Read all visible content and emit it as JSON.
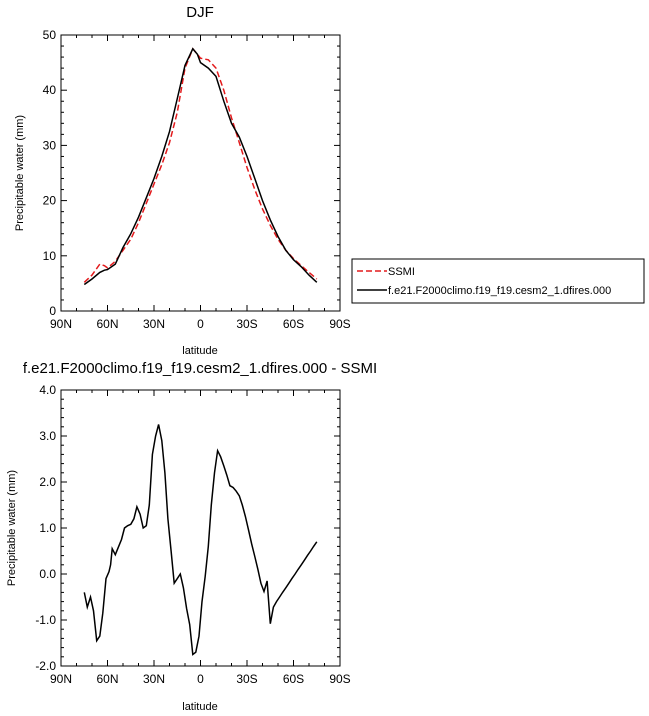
{
  "chart_data": [
    {
      "type": "line",
      "title": "DJF",
      "xlabel": "latitude",
      "ylabel": "Precipitable water (mm)",
      "xlim": [
        90,
        -90
      ],
      "ylim": [
        0,
        50
      ],
      "xticks": [
        90,
        60,
        30,
        0,
        -30,
        -60,
        -90
      ],
      "xtick_labels": [
        "90N",
        "60N",
        "30N",
        "0",
        "30S",
        "60S",
        "90S"
      ],
      "yticks": [
        0,
        10,
        20,
        30,
        40,
        50
      ],
      "ytick_labels": [
        "0",
        "10",
        "20",
        "30",
        "40",
        "50"
      ],
      "legend_position": "right",
      "series": [
        {
          "name": "SSMI",
          "color": "#e31a1c",
          "dash": "dashed",
          "x": [
            75,
            70,
            65,
            62,
            60,
            55,
            50,
            45,
            40,
            35,
            30,
            25,
            20,
            15,
            10,
            5,
            2,
            0,
            -5,
            -10,
            -15,
            -20,
            -25,
            -30,
            -35,
            -40,
            -45,
            -50,
            -55,
            -60,
            -65,
            -70,
            -75
          ],
          "y": [
            5.2,
            6.5,
            8.5,
            8.2,
            7.8,
            9.0,
            11.0,
            13.0,
            16.0,
            19.5,
            23.0,
            26.5,
            30.5,
            36.0,
            44.0,
            47.5,
            46.5,
            45.8,
            45.5,
            44.0,
            40.0,
            35.0,
            30.5,
            26.0,
            22.0,
            18.5,
            15.5,
            13.0,
            11.0,
            9.5,
            8.2,
            7.0,
            5.8
          ]
        },
        {
          "name": "f.e21.F2000climo.f19_f19.cesm2_1.dfires.000",
          "color": "#000000",
          "dash": "solid",
          "x": [
            75,
            70,
            65,
            62,
            60,
            55,
            50,
            45,
            40,
            35,
            30,
            25,
            20,
            15,
            10,
            5,
            2,
            0,
            -5,
            -10,
            -15,
            -20,
            -25,
            -30,
            -35,
            -40,
            -45,
            -50,
            -55,
            -60,
            -65,
            -70,
            -75
          ],
          "y": [
            4.8,
            5.8,
            7.0,
            7.4,
            7.5,
            8.5,
            11.5,
            14.0,
            17.0,
            20.5,
            24.0,
            28.0,
            32.5,
            38.5,
            44.5,
            47.5,
            46.5,
            45.0,
            44.0,
            42.5,
            38.0,
            34.0,
            31.5,
            28.0,
            24.0,
            20.0,
            16.5,
            13.5,
            11.0,
            9.3,
            8.0,
            6.5,
            5.2
          ]
        }
      ]
    },
    {
      "type": "line",
      "title": "f.e21.F2000climo.f19_f19.cesm2_1.dfires.000 - SSMI",
      "xlabel": "latitude",
      "ylabel": "Precipitable water (mm)",
      "xlim": [
        90,
        -90
      ],
      "ylim": [
        -2.0,
        4.0
      ],
      "xticks": [
        90,
        60,
        30,
        0,
        -30,
        -60,
        -90
      ],
      "xtick_labels": [
        "90N",
        "60N",
        "30N",
        "0",
        "30S",
        "60S",
        "90S"
      ],
      "yticks": [
        -2.0,
        -1.0,
        0.0,
        1.0,
        2.0,
        3.0,
        4.0
      ],
      "ytick_labels": [
        "-2.0",
        "-1.0",
        "0.0",
        "1.0",
        "2.0",
        "3.0",
        "4.0"
      ],
      "series": [
        {
          "color": "#000000",
          "x": [
            75,
            73,
            71,
            69,
            67,
            65,
            63,
            61,
            59,
            58,
            57,
            55,
            53,
            51,
            49,
            47,
            45,
            43,
            41,
            39,
            37,
            35,
            33,
            31,
            29,
            27,
            25,
            23,
            21,
            19,
            17,
            15,
            13,
            11,
            9,
            7,
            5,
            3,
            1,
            -1,
            -3,
            -5,
            -7,
            -9,
            -11,
            -13,
            -15,
            -17,
            -19,
            -21,
            -23,
            -25,
            -27,
            -29,
            -31,
            -33,
            -35,
            -37,
            -39,
            -41,
            -43,
            -45,
            -47,
            -49,
            -51,
            -53,
            -55,
            -57,
            -59,
            -61,
            -63,
            -65,
            -67,
            -69,
            -71,
            -73,
            -75
          ],
          "y": [
            -0.4,
            -0.72,
            -0.5,
            -0.8,
            -1.45,
            -1.35,
            -0.85,
            -0.1,
            0.05,
            0.2,
            0.55,
            0.42,
            0.58,
            0.75,
            1.0,
            1.05,
            1.08,
            1.2,
            1.46,
            1.3,
            1.0,
            1.05,
            1.5,
            2.6,
            3.0,
            3.25,
            2.9,
            2.2,
            1.2,
            0.5,
            -0.2,
            -0.1,
            0.0,
            -0.3,
            -0.75,
            -1.1,
            -1.75,
            -1.7,
            -1.35,
            -0.6,
            -0.05,
            0.6,
            1.5,
            2.2,
            2.68,
            2.55,
            2.35,
            2.15,
            1.92,
            1.88,
            1.8,
            1.7,
            1.5,
            1.25,
            0.95,
            0.65,
            0.38,
            0.1,
            -0.2,
            -0.38,
            -0.15,
            -1.08,
            -0.72,
            -0.6,
            -0.5,
            -0.4,
            -0.3,
            -0.2,
            -0.1,
            0.0,
            0.1,
            0.2,
            0.3,
            0.4,
            0.5,
            0.6,
            0.7
          ]
        }
      ]
    }
  ]
}
